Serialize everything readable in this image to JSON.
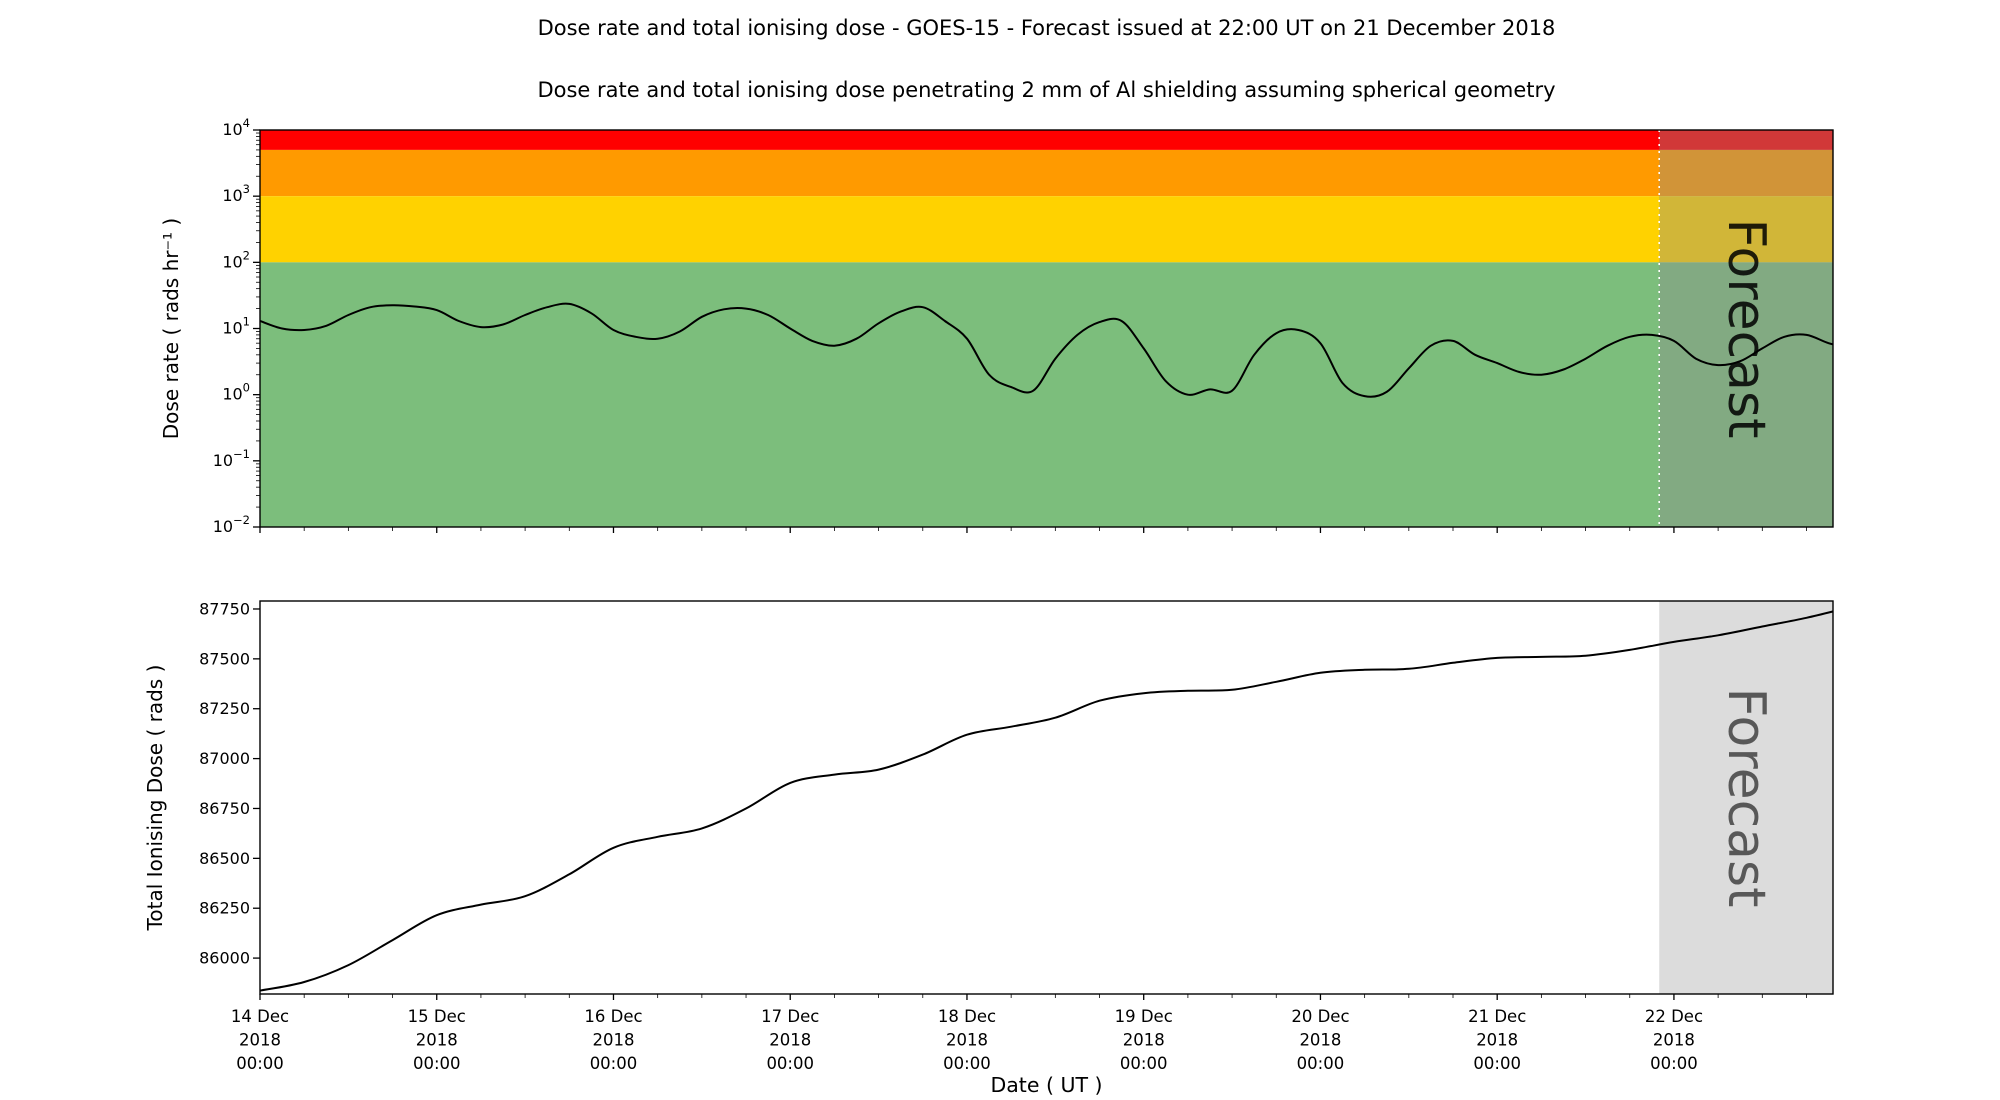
{
  "page": {
    "title": "Dose rate and total ionising dose - GOES-15 - Forecast issued at 22:00 UT on 21 December 2018",
    "subtitle": "Dose rate and total ionising dose penetrating 2 mm of Al shielding assuming spherical geometry"
  },
  "forecast": {
    "label": "Forecast",
    "start_day": 7.9167,
    "label_color": "#808080",
    "divider_color": "#ffffff",
    "top_overlay": {
      "color": "#8c8c8c",
      "opacity": 0.4
    },
    "bottom_fill": "#dcdcdc"
  },
  "x_axis": {
    "label": "Date ( UT )",
    "range_days": [
      0,
      8.9
    ],
    "minor_step_days": 0.25,
    "major_ticks": [
      {
        "day": 0,
        "lines": [
          "14 Dec",
          "2018",
          "00:00"
        ]
      },
      {
        "day": 1,
        "lines": [
          "15 Dec",
          "2018",
          "00:00"
        ]
      },
      {
        "day": 2,
        "lines": [
          "16 Dec",
          "2018",
          "00:00"
        ]
      },
      {
        "day": 3,
        "lines": [
          "17 Dec",
          "2018",
          "00:00"
        ]
      },
      {
        "day": 4,
        "lines": [
          "18 Dec",
          "2018",
          "00:00"
        ]
      },
      {
        "day": 5,
        "lines": [
          "19 Dec",
          "2018",
          "00:00"
        ]
      },
      {
        "day": 6,
        "lines": [
          "20 Dec",
          "2018",
          "00:00"
        ]
      },
      {
        "day": 7,
        "lines": [
          "21 Dec",
          "2018",
          "00:00"
        ]
      },
      {
        "day": 8,
        "lines": [
          "22 Dec",
          "2018",
          "00:00"
        ]
      }
    ]
  },
  "chart_data": [
    {
      "type": "line",
      "panel": "dose-rate",
      "ylabel": "Dose rate ( rads hr⁻¹ )",
      "yscale": "log",
      "ylim": [
        0.01,
        10000
      ],
      "ytick_exponents": [
        4,
        3,
        2,
        1,
        0,
        -1,
        -2
      ],
      "line_color": "#000000",
      "bands": [
        {
          "name": "red",
          "from": 5000,
          "to": 10000,
          "color": "#ff0000"
        },
        {
          "name": "orange",
          "from": 1000,
          "to": 5000,
          "color": "#ff9a00"
        },
        {
          "name": "yellow",
          "from": 100,
          "to": 1000,
          "color": "#ffd200"
        },
        {
          "name": "green",
          "from": 0.01,
          "to": 100,
          "color": "#7cbe7c"
        }
      ],
      "x_start": 0,
      "x_step": 0.125,
      "values": [
        13,
        10,
        9.5,
        11,
        16,
        21,
        22.5,
        21.5,
        19,
        13,
        10.5,
        11.5,
        16,
        21,
        23.5,
        17,
        9.5,
        7.5,
        7.0,
        9,
        15,
        19.5,
        20,
        16,
        10,
        6.5,
        5.5,
        7,
        12,
        18,
        21,
        13,
        7,
        2.0,
        1.3,
        1.15,
        3.5,
        8,
        12.5,
        13,
        5,
        1.6,
        1.0,
        1.2,
        1.15,
        4,
        8.5,
        9.5,
        6,
        1.5,
        0.95,
        1.1,
        2.5,
        5.5,
        6.5,
        4,
        3,
        2.2,
        2.0,
        2.4,
        3.5,
        5.5,
        7.5,
        8,
        6.5,
        3.5,
        2.8,
        3.2,
        5,
        7.5,
        8,
        6,
        5
      ]
    },
    {
      "type": "line",
      "panel": "total-dose",
      "ylabel": "Total Ionising Dose ( rads )",
      "yscale": "linear",
      "ylim": [
        85820,
        87790
      ],
      "yticks": [
        86000,
        86250,
        86500,
        86750,
        87000,
        87250,
        87500,
        87750
      ],
      "line_color": "#000000",
      "x_start": 0,
      "x_step": 0.25,
      "values": [
        85837,
        85880,
        85965,
        86090,
        86215,
        86268,
        86310,
        86420,
        86553,
        86608,
        86650,
        86750,
        86878,
        86920,
        86945,
        87020,
        87120,
        87160,
        87205,
        87290,
        87328,
        87340,
        87345,
        87385,
        87430,
        87445,
        87450,
        87480,
        87505,
        87510,
        87516,
        87545,
        87585,
        87618,
        87662,
        87706,
        87760
      ]
    }
  ]
}
